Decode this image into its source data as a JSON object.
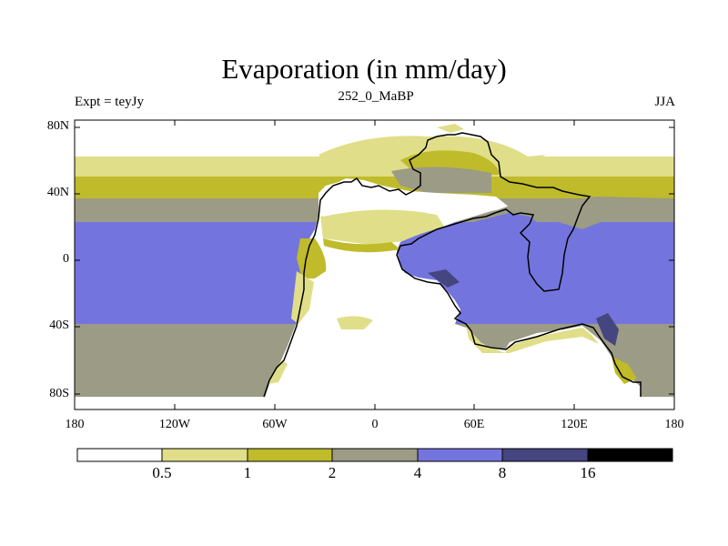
{
  "title": "Evaporation (in mm/day)",
  "subtitle_left": "Expt = teyJy",
  "subtitle_center": "252_0_MaBP",
  "subtitle_right": "JJA",
  "y_axis_labels": [
    "80N",
    "40N",
    "0",
    "40S",
    "80S"
  ],
  "x_axis_labels": [
    "180",
    "120W",
    "60W",
    "0",
    "60E",
    "120E",
    "180"
  ],
  "colorbar": {
    "labels": [
      "0.5",
      "1",
      "2",
      "4",
      "8",
      "16"
    ],
    "colors": [
      "#ffffff",
      "#e0de88",
      "#bfbb2a",
      "#9b9b86",
      "#7474de",
      "#45457f",
      "#000000"
    ]
  },
  "legend_items": [
    {
      "range": "< 0.5",
      "color": "#ffffff"
    },
    {
      "range": "0.5-1",
      "color": "#e0de88"
    },
    {
      "range": "1-2",
      "color": "#bfbb2a"
    },
    {
      "range": "2-4",
      "color": "#9b9b86"
    },
    {
      "range": "4-8",
      "color": "#7474de"
    },
    {
      "range": "8-16",
      "color": "#45457f"
    },
    {
      "range": "> 16",
      "color": "#000000"
    }
  ]
}
